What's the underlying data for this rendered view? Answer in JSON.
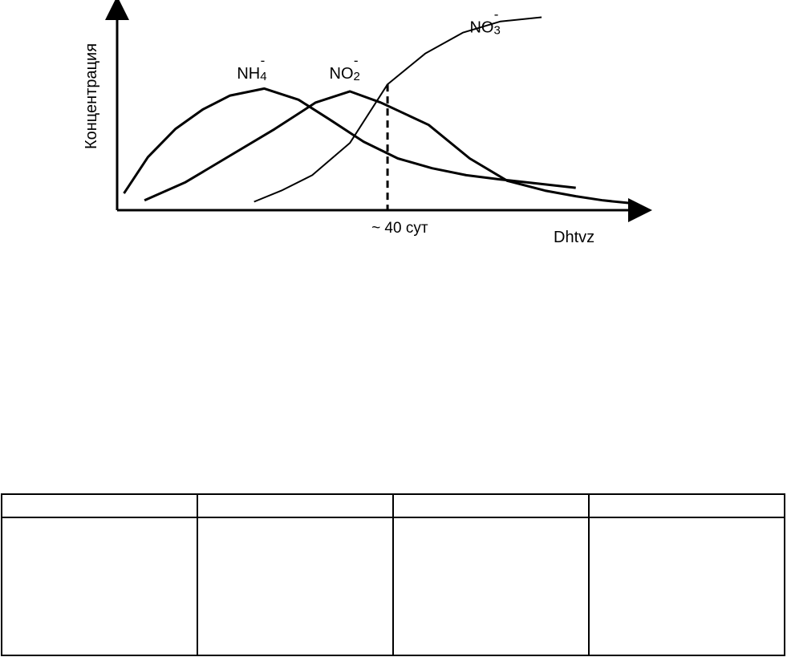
{
  "chart_data": {
    "type": "line",
    "ylabel": "Концентрация",
    "xlabel": "Dhtvz",
    "x_marker": {
      "label": "~ 40 сут"
    },
    "series": [
      {
        "base": "NH",
        "sub": "4",
        "sup": "-",
        "points": [
          [
            2,
            12
          ],
          [
            9,
            38
          ],
          [
            17,
            58
          ],
          [
            25,
            72
          ],
          [
            33,
            82
          ],
          [
            43,
            87
          ],
          [
            53,
            79
          ],
          [
            62,
            65
          ],
          [
            72,
            49
          ],
          [
            82,
            37
          ],
          [
            92,
            30
          ],
          [
            102,
            25
          ],
          [
            112,
            22
          ],
          [
            123,
            19
          ],
          [
            134,
            16
          ]
        ]
      },
      {
        "base": "NO",
        "sub": "2",
        "sup": "-",
        "points": [
          [
            8,
            7
          ],
          [
            20,
            20
          ],
          [
            33,
            39
          ],
          [
            46,
            58
          ],
          [
            58,
            77
          ],
          [
            68,
            85
          ],
          [
            77,
            77
          ],
          [
            91,
            61
          ],
          [
            103,
            37
          ],
          [
            114,
            21
          ],
          [
            125,
            14
          ],
          [
            134,
            10
          ],
          [
            142,
            7
          ],
          [
            150,
            5
          ]
        ]
      },
      {
        "base": "NO",
        "sub": "3",
        "sup": "-",
        "points": [
          [
            40,
            6
          ],
          [
            48,
            14
          ],
          [
            57,
            25
          ],
          [
            68,
            48
          ],
          [
            79,
            90
          ],
          [
            90,
            112
          ],
          [
            101,
            127
          ],
          [
            112,
            135
          ],
          [
            124,
            138
          ]
        ]
      }
    ],
    "xlim": [
      0,
      150
    ],
    "ylim": [
      0,
      140
    ],
    "marker_x": 79,
    "label_pos": [
      [
        35,
        94
      ],
      [
        62,
        94
      ],
      [
        103,
        127
      ]
    ]
  },
  "table": {
    "columns": 4
  }
}
